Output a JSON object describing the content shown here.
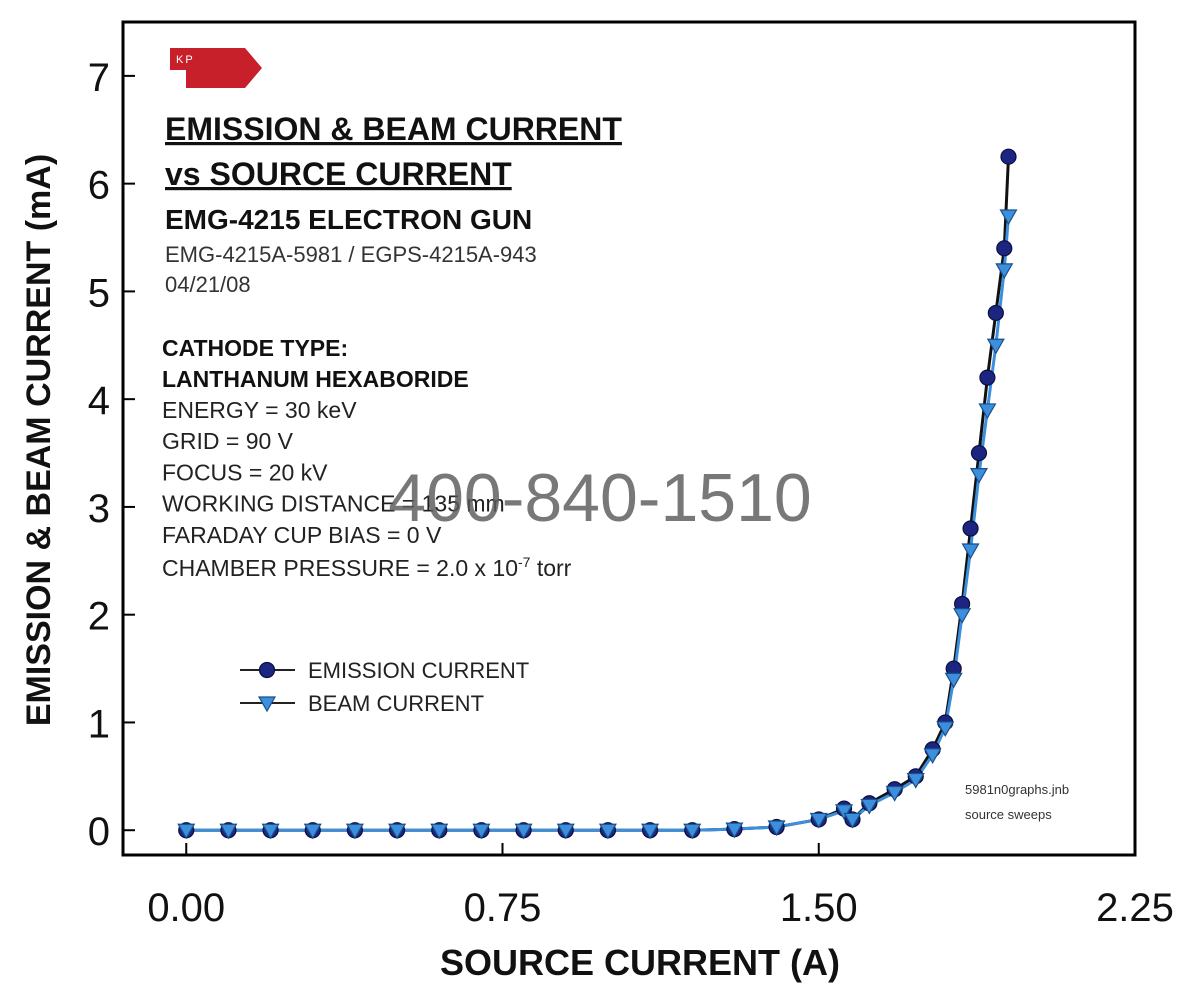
{
  "chart_data": {
    "type": "line",
    "logo": "KP",
    "title_lines": [
      "EMISSION & BEAM CURRENT",
      "vs SOURCE CURRENT"
    ],
    "device": "EMG-4215 ELECTRON GUN",
    "info_lines": [
      "EMG-4215A-5981 / EGPS-4215A-943",
      "04/21/08"
    ],
    "cathode_lines": [
      "CATHODE TYPE:",
      "LANTHANUM HEXABORIDE"
    ],
    "conditions": [
      "ENERGY = 30 keV",
      "GRID = 90 V",
      "FOCUS = 20 kV",
      "WORKING DISTANCE = 135 mm",
      "FARADAY CUP BIAS = 0 V"
    ],
    "pressure": {
      "text": "CHAMBER PRESSURE = 2.0 x 10",
      "superscript": "-7",
      "unit": " torr"
    },
    "notes": [
      "5981n0graphs.jnb",
      "source sweeps"
    ],
    "watermark": "400-840-1510",
    "x_label": "SOURCE CURRENT (A)",
    "y_label": "EMISSION & BEAM CURRENT (mA)",
    "xlim": [
      -0.15,
      2.25
    ],
    "ylim": [
      -0.23,
      7.5
    ],
    "xticks": [
      {
        "value": 0,
        "label": "0.00"
      },
      0.75,
      {
        "value": 1.5,
        "label": "1.50"
      },
      2.25
    ],
    "yticks": [
      0,
      1,
      2,
      3,
      4,
      5,
      6,
      7
    ],
    "x": [
      0,
      0.1,
      0.2,
      0.3,
      0.4,
      0.5,
      0.6,
      0.7,
      0.8,
      0.9,
      1.0,
      1.1,
      1.2,
      1.3,
      1.4,
      1.5,
      1.56,
      1.58,
      1.62,
      1.68,
      1.73,
      1.77,
      1.8,
      1.82,
      1.84,
      1.86,
      1.88,
      1.9,
      1.92,
      1.94,
      1.95
    ],
    "series": [
      {
        "name": "EMISSION CURRENT",
        "color": "#1c2580",
        "marker": "circle",
        "values": [
          0,
          0,
          0,
          0,
          0,
          0,
          0,
          0,
          0,
          0,
          0,
          0,
          0,
          0.01,
          0.03,
          0.1,
          0.2,
          0.1,
          0.25,
          0.38,
          0.5,
          0.75,
          1.0,
          1.5,
          2.1,
          2.8,
          3.5,
          4.2,
          4.8,
          5.4,
          6.25
        ]
      },
      {
        "name": "BEAM CURRENT",
        "color": "#3c8fdc",
        "marker": "triangle-down",
        "values": [
          0,
          0,
          0,
          0,
          0,
          0,
          0,
          0,
          0,
          0,
          0,
          0,
          0,
          0.01,
          0.03,
          0.1,
          0.18,
          0.1,
          0.23,
          0.35,
          0.47,
          0.7,
          0.95,
          1.4,
          2.0,
          2.6,
          3.3,
          3.9,
          4.5,
          5.2,
          5.7
        ]
      }
    ]
  }
}
